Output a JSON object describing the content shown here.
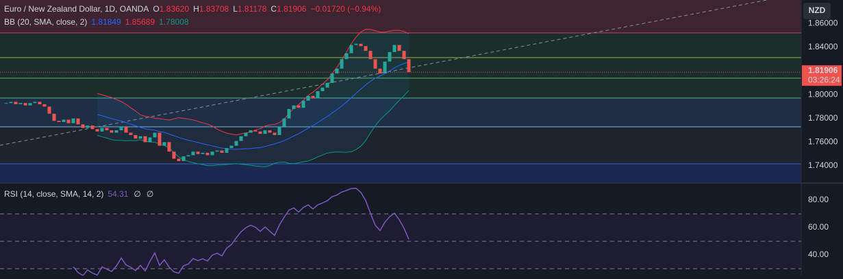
{
  "header": {
    "symbol": "Euro / New Zealand Dollar, 1D, OANDA",
    "o_label": "O",
    "open": "1.83620",
    "h_label": "H",
    "high": "1.83708",
    "l_label": "L",
    "low": "1.81178",
    "c_label": "C",
    "close": "1.81906",
    "change": "−0.01720 (−0.94%)"
  },
  "bb_legend": {
    "label": "BB (20, SMA, close, 2)",
    "basis": "1.81849",
    "upper": "1.85689",
    "lower": "1.78008"
  },
  "rsi_legend": {
    "label": "RSI (14, close, SMA, 14, 2)",
    "value": "54.31",
    "extra1": "∅",
    "extra2": "∅"
  },
  "currency": "NZD",
  "price_label": {
    "price": "1.81906",
    "countdown": "03:26:24"
  },
  "chart": {
    "type": "candlestick",
    "closes": [
      1.793,
      1.794,
      1.792,
      1.793,
      1.791,
      1.793,
      1.794,
      1.792,
      1.79,
      1.784,
      1.778,
      1.777,
      1.779,
      1.776,
      1.78,
      1.775,
      1.772,
      1.774,
      1.771,
      1.769,
      1.772,
      1.77,
      1.768,
      1.77,
      1.773,
      1.768,
      1.766,
      1.763,
      1.765,
      1.76,
      1.764,
      1.768,
      1.757,
      1.76,
      1.752,
      1.746,
      1.744,
      1.748,
      1.749,
      1.752,
      1.75,
      1.751,
      1.749,
      1.752,
      1.753,
      1.751,
      1.755,
      1.757,
      1.761,
      1.765,
      1.768,
      1.77,
      1.769,
      1.767,
      1.77,
      1.768,
      1.766,
      1.773,
      1.78,
      1.788,
      1.791,
      1.789,
      1.795,
      1.799,
      1.797,
      1.803,
      1.806,
      1.81,
      1.818,
      1.822,
      1.83,
      1.835,
      1.842,
      1.843,
      1.841,
      1.837,
      1.83,
      1.822,
      1.818,
      1.828,
      1.836,
      1.842,
      1.837,
      1.83,
      1.81906
    ],
    "ylim": [
      1.7261,
      1.8799
    ],
    "yticks": [
      {
        "value": 1.86,
        "label": "1.86000"
      },
      {
        "value": 1.84,
        "label": "1.84000"
      },
      {
        "value": 1.8,
        "label": "1.80000"
      },
      {
        "value": 1.78,
        "label": "1.78000"
      },
      {
        "value": 1.76,
        "label": "1.76000"
      },
      {
        "value": 1.74,
        "label": "1.74000"
      }
    ],
    "up_color": "#26a69a",
    "down_color": "#ef5350",
    "rsi_ylim": [
      25,
      92
    ],
    "rsi_yticks": [
      {
        "value": 80,
        "label": "80.00"
      },
      {
        "value": 60,
        "label": "60.00"
      },
      {
        "value": 40,
        "label": "40.00"
      }
    ]
  }
}
